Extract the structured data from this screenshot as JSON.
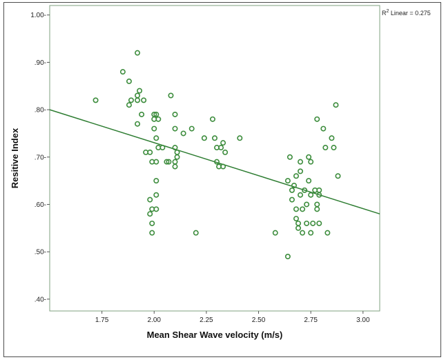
{
  "chart_data": {
    "type": "scatter",
    "title": "",
    "xlabel": "Mean Shear Wave velocity (m/s)",
    "ylabel": "Resitive Index",
    "xlim": [
      1.5,
      3.08
    ],
    "ylim": [
      0.375,
      1.02
    ],
    "x_ticks": [
      1.75,
      2.0,
      2.25,
      2.5,
      2.75,
      3.0
    ],
    "x_tick_labels": [
      "1.75",
      "2.00",
      "2.25",
      "2.50",
      "2.75",
      "3.00"
    ],
    "y_ticks": [
      0.4,
      0.5,
      0.6,
      0.7,
      0.8,
      0.9,
      1.0
    ],
    "y_tick_labels": [
      ".40-",
      ".50-",
      ".60-",
      ".70-",
      ".80-",
      ".90-",
      "1.00-"
    ],
    "grid": false,
    "fit_line": {
      "label": "R² Linear = 0.275",
      "label_prefix": "R",
      "label_sup": "2",
      "label_rest": " Linear = 0.275",
      "color": "#2e7d32",
      "x": [
        1.5,
        3.08
      ],
      "y": [
        0.8,
        0.58
      ]
    },
    "marker_color": "#3c8c3c",
    "points": [
      [
        1.72,
        0.82
      ],
      [
        1.85,
        0.88
      ],
      [
        1.88,
        0.86
      ],
      [
        1.88,
        0.81
      ],
      [
        1.89,
        0.82
      ],
      [
        1.92,
        0.92
      ],
      [
        1.92,
        0.83
      ],
      [
        1.92,
        0.82
      ],
      [
        1.93,
        0.84
      ],
      [
        1.92,
        0.77
      ],
      [
        1.95,
        0.82
      ],
      [
        1.94,
        0.79
      ],
      [
        1.96,
        0.71
      ],
      [
        1.98,
        0.71
      ],
      [
        2.0,
        0.79
      ],
      [
        2.01,
        0.79
      ],
      [
        2.0,
        0.78
      ],
      [
        2.0,
        0.76
      ],
      [
        2.01,
        0.74
      ],
      [
        2.02,
        0.78
      ],
      [
        2.02,
        0.72
      ],
      [
        1.99,
        0.69
      ],
      [
        2.01,
        0.69
      ],
      [
        2.01,
        0.65
      ],
      [
        2.01,
        0.62
      ],
      [
        1.98,
        0.61
      ],
      [
        1.99,
        0.59
      ],
      [
        2.01,
        0.59
      ],
      [
        1.98,
        0.58
      ],
      [
        1.99,
        0.56
      ],
      [
        1.99,
        0.54
      ],
      [
        2.04,
        0.72
      ],
      [
        2.06,
        0.69
      ],
      [
        2.07,
        0.69
      ],
      [
        2.08,
        0.83
      ],
      [
        2.1,
        0.79
      ],
      [
        2.1,
        0.76
      ],
      [
        2.1,
        0.72
      ],
      [
        2.11,
        0.71
      ],
      [
        2.11,
        0.7
      ],
      [
        2.1,
        0.69
      ],
      [
        2.1,
        0.68
      ],
      [
        2.14,
        0.75
      ],
      [
        2.18,
        0.76
      ],
      [
        2.2,
        0.54
      ],
      [
        2.24,
        0.74
      ],
      [
        2.28,
        0.78
      ],
      [
        2.29,
        0.74
      ],
      [
        2.3,
        0.72
      ],
      [
        2.3,
        0.69
      ],
      [
        2.31,
        0.68
      ],
      [
        2.32,
        0.72
      ],
      [
        2.33,
        0.73
      ],
      [
        2.33,
        0.68
      ],
      [
        2.34,
        0.71
      ],
      [
        2.41,
        0.74
      ],
      [
        2.58,
        0.54
      ],
      [
        2.64,
        0.65
      ],
      [
        2.65,
        0.7
      ],
      [
        2.64,
        0.49
      ],
      [
        2.66,
        0.63
      ],
      [
        2.66,
        0.61
      ],
      [
        2.67,
        0.64
      ],
      [
        2.68,
        0.66
      ],
      [
        2.68,
        0.59
      ],
      [
        2.68,
        0.57
      ],
      [
        2.69,
        0.56
      ],
      [
        2.69,
        0.55
      ],
      [
        2.7,
        0.69
      ],
      [
        2.7,
        0.67
      ],
      [
        2.7,
        0.62
      ],
      [
        2.71,
        0.59
      ],
      [
        2.71,
        0.54
      ],
      [
        2.72,
        0.63
      ],
      [
        2.73,
        0.6
      ],
      [
        2.73,
        0.56
      ],
      [
        2.74,
        0.7
      ],
      [
        2.74,
        0.65
      ],
      [
        2.75,
        0.69
      ],
      [
        2.75,
        0.62
      ],
      [
        2.76,
        0.56
      ],
      [
        2.75,
        0.54
      ],
      [
        2.77,
        0.63
      ],
      [
        2.78,
        0.59
      ],
      [
        2.78,
        0.6
      ],
      [
        2.79,
        0.62
      ],
      [
        2.79,
        0.56
      ],
      [
        2.78,
        0.78
      ],
      [
        2.79,
        0.63
      ],
      [
        2.81,
        0.76
      ],
      [
        2.82,
        0.72
      ],
      [
        2.83,
        0.54
      ],
      [
        2.85,
        0.74
      ],
      [
        2.86,
        0.72
      ],
      [
        2.87,
        0.81
      ],
      [
        2.88,
        0.66
      ]
    ]
  }
}
